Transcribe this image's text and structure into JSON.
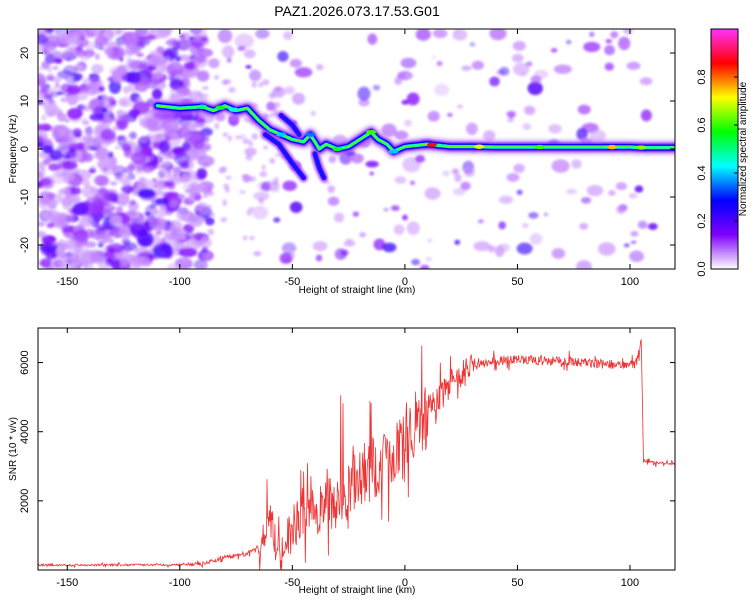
{
  "title": "PAZ1.2026.073.17.53.G01",
  "chart_data": [
    {
      "type": "heatmap",
      "xlabel": "Height of straight line (km)",
      "ylabel": "Frequency (Hz)",
      "xlim": [
        -163,
        120
      ],
      "ylim": [
        -25,
        25
      ],
      "xticks": [
        -150,
        -100,
        -50,
        0,
        50,
        100
      ],
      "xtick_labels": [
        "-150",
        "-100",
        "-50",
        "0",
        "50",
        "100"
      ],
      "yticks": [
        -20,
        -10,
        0,
        10,
        20
      ],
      "ytick_labels": [
        "-20",
        "-10",
        "0",
        "10",
        "20"
      ],
      "colorbar": {
        "label": "Normalized spectral amplitude",
        "range": [
          0,
          1
        ],
        "ticks": [
          0.0,
          0.2,
          0.4,
          0.6,
          0.8
        ],
        "tick_labels": [
          "0.0",
          "0.2",
          "0.4",
          "0.6",
          "0.8"
        ],
        "colormap": [
          "#ff33ff",
          "#ff0000",
          "#ffff00",
          "#00ff00",
          "#00ffff",
          "#0000ff",
          "#8000ff",
          "#ffffff"
        ]
      },
      "ridge": {
        "x": [
          -110,
          -100,
          -90,
          -85,
          -80,
          -75,
          -70,
          -65,
          -60,
          -55,
          -50,
          -45,
          -42,
          -38,
          -35,
          -30,
          -25,
          -20,
          -15,
          -12,
          -8,
          -5,
          0,
          10,
          20,
          30,
          40,
          60,
          80,
          100,
          105,
          120
        ],
        "y": [
          9,
          8.5,
          8.8,
          8,
          9,
          8,
          8.5,
          6,
          4,
          3,
          2,
          1.5,
          3,
          0,
          1,
          0,
          0.5,
          2,
          3.5,
          2,
          1,
          -0.5,
          0.5,
          1,
          0.5,
          0.5,
          0.4,
          0.4,
          0.4,
          0.4,
          0.3,
          0.3
        ]
      },
      "branches": [
        {
          "x": [
            -62,
            -56,
            -50,
            -45
          ],
          "y": [
            3,
            1,
            -3,
            -6
          ]
        },
        {
          "x": [
            -40,
            -38,
            -36
          ],
          "y": [
            -1,
            -4,
            -6
          ]
        },
        {
          "x": [
            -55,
            -50,
            -47
          ],
          "y": [
            7,
            5,
            3
          ]
        }
      ]
    },
    {
      "type": "line",
      "xlabel": "Height of straight line (km)",
      "ylabel": "SNR (10 * v/v)",
      "xlim": [
        -163,
        120
      ],
      "ylim": [
        0,
        7000
      ],
      "xticks": [
        -150,
        -100,
        -50,
        0,
        50,
        100
      ],
      "xtick_labels": [
        "-150",
        "-100",
        "-50",
        "0",
        "50",
        "100"
      ],
      "yticks": [
        2000,
        4000,
        6000
      ],
      "ytick_labels": [
        "2000",
        "4000",
        "6000"
      ],
      "series": [
        {
          "name": "SNR",
          "color": "#ee3333",
          "x": [
            -163,
            -150,
            -120,
            -100,
            -95,
            -90,
            -85,
            -80,
            -75,
            -70,
            -65,
            -62,
            -60,
            -58,
            -55,
            -52,
            -50,
            -45,
            -40,
            -35,
            -30,
            -25,
            -20,
            -15,
            -10,
            -5,
            0,
            5,
            10,
            15,
            20,
            25,
            30,
            40,
            50,
            60,
            70,
            80,
            90,
            100,
            104,
            105,
            106,
            110,
            120
          ],
          "y": [
            150,
            140,
            150,
            150,
            160,
            180,
            260,
            380,
            420,
            450,
            700,
            1200,
            1700,
            900,
            500,
            900,
            1300,
            1500,
            1700,
            1900,
            2000,
            2300,
            2600,
            2900,
            3200,
            3500,
            3800,
            4200,
            4600,
            5000,
            5350,
            5650,
            5900,
            6050,
            6100,
            6050,
            6050,
            6000,
            5950,
            5900,
            6100,
            6700,
            3150,
            3100,
            3050
          ]
        }
      ]
    }
  ]
}
